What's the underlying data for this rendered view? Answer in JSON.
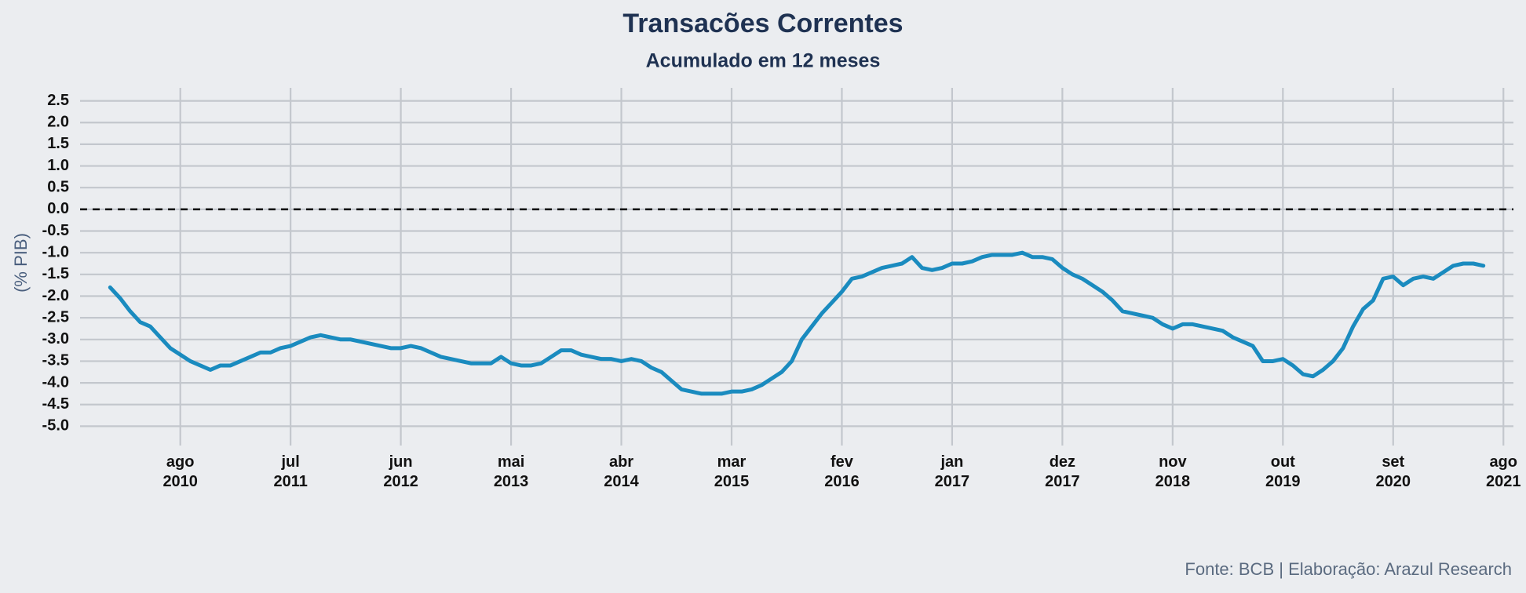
{
  "chart_data": {
    "type": "line",
    "title": "Transacões Correntes",
    "subtitle": "Acumulado em 12 meses",
    "y_label": "(% PIB)",
    "caption": "Fonte: BCB | Elaboração: Arazul Research",
    "color": "#1a8bbf",
    "grid": true,
    "reference_line": 0,
    "xlim": [
      "2009-10",
      "2021-09"
    ],
    "ylim": [
      -5.3,
      2.8
    ],
    "yticks": [
      2.5,
      {
        "value": 2,
        "label": "2.0"
      },
      1.5,
      {
        "value": 1,
        "label": "1.0"
      },
      0.5,
      {
        "value": 0,
        "label": "0.0"
      },
      -0.5,
      {
        "value": -1,
        "label": "-1.0"
      },
      -1.5,
      {
        "value": -2,
        "label": "-2.0"
      },
      -2.5,
      {
        "value": -3,
        "label": "-3.0"
      },
      -3.5,
      {
        "value": -4,
        "label": "-4.0"
      },
      -4.5,
      {
        "value": -5,
        "label": "-5.0"
      }
    ],
    "xticks": [
      {
        "value": "2010-08",
        "label": "ago\n2010"
      },
      {
        "value": "2011-07",
        "label": "jul\n2011"
      },
      {
        "value": "2012-06",
        "label": "jun\n2012"
      },
      {
        "value": "2013-05",
        "label": "mai\n2013"
      },
      {
        "value": "2014-04",
        "label": "abr\n2014"
      },
      {
        "value": "2015-03",
        "label": "mar\n2015"
      },
      {
        "value": "2016-02",
        "label": "fev\n2016"
      },
      {
        "value": "2017-01",
        "label": "jan\n2017"
      },
      {
        "value": "2017-12",
        "label": "dez\n2017"
      },
      {
        "value": "2018-11",
        "label": "nov\n2018"
      },
      {
        "value": "2019-10",
        "label": "out\n2019"
      },
      {
        "value": "2020-09",
        "label": "set\n2020"
      },
      {
        "value": "2021-08",
        "label": "ago\n2021"
      }
    ],
    "x": [
      "2010-01",
      "2010-02",
      "2010-03",
      "2010-04",
      "2010-05",
      "2010-06",
      "2010-07",
      "2010-08",
      "2010-09",
      "2010-10",
      "2010-11",
      "2010-12",
      "2011-01",
      "2011-02",
      "2011-03",
      "2011-04",
      "2011-05",
      "2011-06",
      "2011-07",
      "2011-08",
      "2011-09",
      "2011-10",
      "2011-11",
      "2011-12",
      "2012-01",
      "2012-02",
      "2012-03",
      "2012-04",
      "2012-05",
      "2012-06",
      "2012-07",
      "2012-08",
      "2012-09",
      "2012-10",
      "2012-11",
      "2012-12",
      "2013-01",
      "2013-02",
      "2013-03",
      "2013-04",
      "2013-05",
      "2013-06",
      "2013-07",
      "2013-08",
      "2013-09",
      "2013-10",
      "2013-11",
      "2013-12",
      "2014-01",
      "2014-02",
      "2014-03",
      "2014-04",
      "2014-05",
      "2014-06",
      "2014-07",
      "2014-08",
      "2014-09",
      "2014-10",
      "2014-11",
      "2014-12",
      "2015-01",
      "2015-02",
      "2015-03",
      "2015-04",
      "2015-05",
      "2015-06",
      "2015-07",
      "2015-08",
      "2015-09",
      "2015-10",
      "2015-11",
      "2015-12",
      "2016-01",
      "2016-02",
      "2016-03",
      "2016-04",
      "2016-05",
      "2016-06",
      "2016-07",
      "2016-08",
      "2016-09",
      "2016-10",
      "2016-11",
      "2016-12",
      "2017-01",
      "2017-02",
      "2017-03",
      "2017-04",
      "2017-05",
      "2017-06",
      "2017-07",
      "2017-08",
      "2017-09",
      "2017-10",
      "2017-11",
      "2017-12",
      "2018-01",
      "2018-02",
      "2018-03",
      "2018-04",
      "2018-05",
      "2018-06",
      "2018-07",
      "2018-08",
      "2018-09",
      "2018-10",
      "2018-11",
      "2018-12",
      "2019-01",
      "2019-02",
      "2019-03",
      "2019-04",
      "2019-05",
      "2019-06",
      "2019-07",
      "2019-08",
      "2019-09",
      "2019-10",
      "2019-11",
      "2019-12",
      "2020-01",
      "2020-02",
      "2020-03",
      "2020-04",
      "2020-05",
      "2020-06",
      "2020-07",
      "2020-08",
      "2020-09",
      "2020-10",
      "2020-11",
      "2020-12",
      "2021-01",
      "2021-02",
      "2021-03",
      "2021-04",
      "2021-05",
      "2021-06"
    ],
    "values": [
      -1.8,
      -2.05,
      -2.35,
      -2.6,
      -2.7,
      -2.95,
      -3.2,
      -3.35,
      -3.5,
      -3.6,
      -3.7,
      -3.6,
      -3.6,
      -3.5,
      -3.4,
      -3.3,
      -3.3,
      -3.2,
      -3.15,
      -3.05,
      -2.95,
      -2.9,
      -2.95,
      -3.0,
      -3.0,
      -3.05,
      -3.1,
      -3.15,
      -3.2,
      -3.2,
      -3.15,
      -3.2,
      -3.3,
      -3.4,
      -3.45,
      -3.5,
      -3.55,
      -3.55,
      -3.55,
      -3.4,
      -3.55,
      -3.6,
      -3.6,
      -3.55,
      -3.4,
      -3.25,
      -3.25,
      -3.35,
      -3.4,
      -3.45,
      -3.45,
      -3.5,
      -3.45,
      -3.5,
      -3.65,
      -3.75,
      -3.95,
      -4.15,
      -4.2,
      -4.25,
      -4.25,
      -4.25,
      -4.2,
      -4.2,
      -4.15,
      -4.05,
      -3.9,
      -3.75,
      -3.5,
      -3.0,
      -2.7,
      -2.4,
      -2.15,
      -1.9,
      -1.6,
      -1.55,
      -1.45,
      -1.35,
      -1.3,
      -1.25,
      -1.1,
      -1.35,
      -1.4,
      -1.35,
      -1.25,
      -1.25,
      -1.2,
      -1.1,
      -1.05,
      -1.05,
      -1.05,
      -1.0,
      -1.1,
      -1.1,
      -1.15,
      -1.35,
      -1.5,
      -1.6,
      -1.75,
      -1.9,
      -2.1,
      -2.35,
      -2.4,
      -2.45,
      -2.5,
      -2.65,
      -2.75,
      -2.65,
      -2.65,
      -2.7,
      -2.75,
      -2.8,
      -2.95,
      -3.05,
      -3.15,
      -3.5,
      -3.5,
      -3.45,
      -3.6,
      -3.8,
      -3.85,
      -3.7,
      -3.5,
      -3.2,
      -2.7,
      -2.3,
      -2.1,
      -1.6,
      -1.55,
      -1.75,
      -1.6,
      -1.55,
      -1.6,
      -1.45,
      -1.3,
      -1.25,
      -1.25,
      -1.3
    ]
  }
}
